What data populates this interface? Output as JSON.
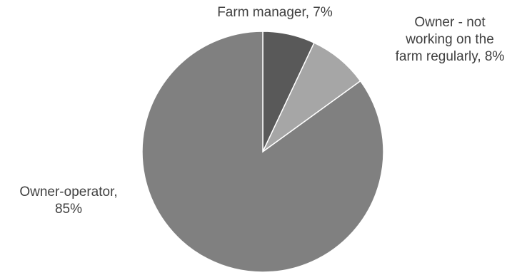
{
  "chart_data": {
    "type": "pie",
    "title": "",
    "slices": [
      {
        "label": "Farm manager",
        "value": 7,
        "display": "Farm manager, 7%",
        "color": "#595959"
      },
      {
        "label": "Owner - not working on the farm regularly",
        "value": 8,
        "display_lines": [
          "Owner - not",
          "working on the",
          "farm regularly, 8%"
        ],
        "color": "#a6a6a6"
      },
      {
        "label": "Owner-operator",
        "value": 85,
        "display_lines": [
          "Owner-operator,",
          "85%"
        ],
        "color": "#808080"
      }
    ],
    "legend": "none",
    "data_labels": "outside"
  }
}
